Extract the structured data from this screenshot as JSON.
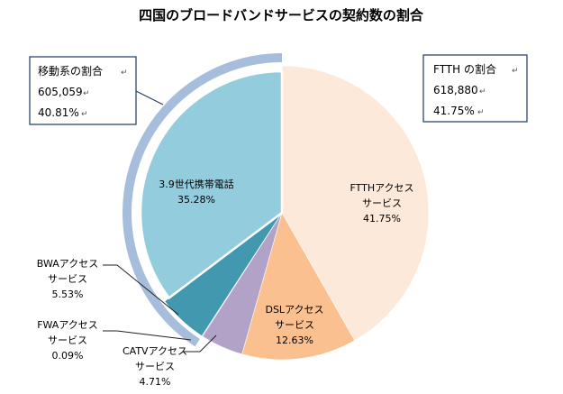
{
  "chart_data": {
    "type": "pie",
    "title": "四国のブロードバンドサービスの契約数の割合",
    "slices": [
      {
        "label_lines": [
          "FTTHアクセス",
          "サービス"
        ],
        "value": 41.75,
        "value_label": "41.75%",
        "color": "#fde9d9"
      },
      {
        "label_lines": [
          "DSLアクセス",
          "サービス"
        ],
        "value": 12.63,
        "value_label": "12.63%",
        "color": "#fac090"
      },
      {
        "label_lines": [
          "CATVアクセス",
          "サービス"
        ],
        "value": 4.71,
        "value_label": "4.71%",
        "color": "#b3a2c7"
      },
      {
        "label_lines": [
          "FWAアクセス",
          "サービス"
        ],
        "value": 0.09,
        "value_label": "0.09%",
        "color": "#31849b"
      },
      {
        "label_lines": [
          "BWAアクセス",
          "サービス"
        ],
        "value": 5.53,
        "value_label": "5.53%",
        "color": "#4198af"
      },
      {
        "label_lines": [
          "3.9世代携帯電話"
        ],
        "value": 35.28,
        "value_label": "35.28%",
        "color": "#93cddd"
      }
    ],
    "mobile_ring_color": "#a6bddb",
    "callouts": {
      "mobile": {
        "title": "移動系の割合",
        "count": "605,059",
        "percent": "40.81%"
      },
      "ftth": {
        "title": "FTTH の割合",
        "count": "618,880",
        "percent": "41.75%"
      }
    },
    "return_mark": "↵"
  }
}
